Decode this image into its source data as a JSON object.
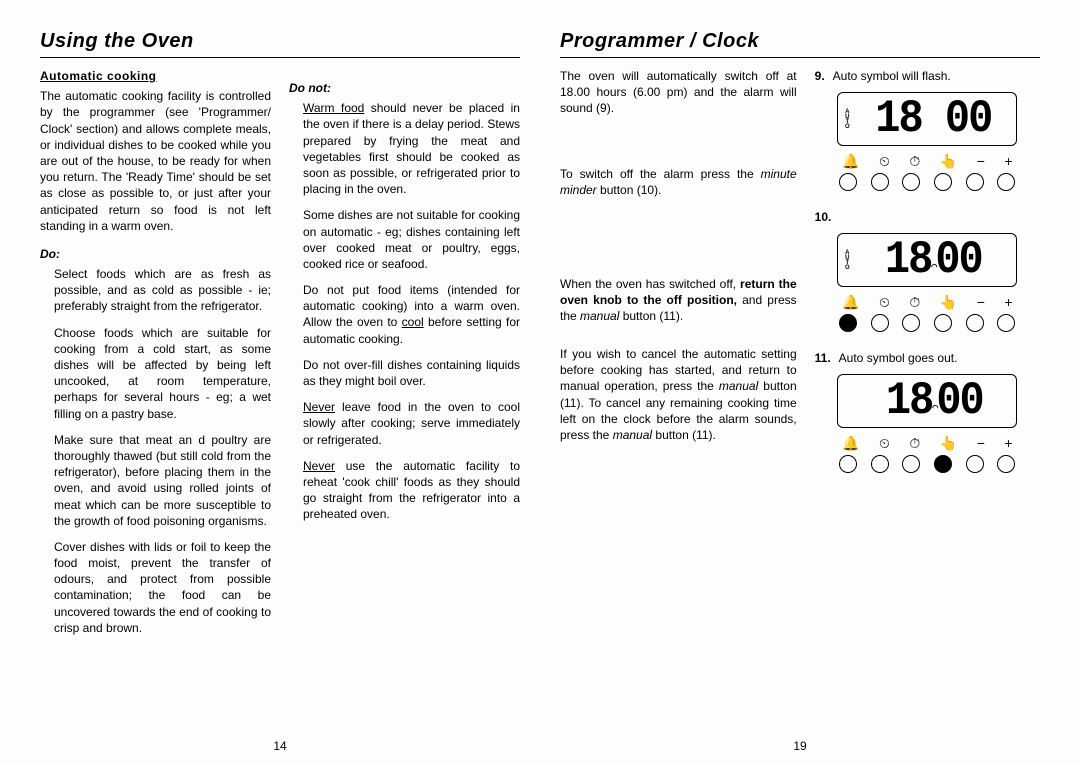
{
  "left_page": {
    "title": "Using the Oven",
    "section_heading": "Automatic cooking",
    "intro": "The automatic cooking facility is controlled by the programmer (see 'Programmer/ Clock' section) and allows complete meals, or individual dishes to be cooked while you are out of the house, to be ready for when you return. The 'Ready Time' should be set as close as possible to, or just after your anticipated return so food is not left standing in a warm oven.",
    "do_label": "Do:",
    "do_items": [
      "Select foods which are as fresh as possible, and as cold as possible - ie; preferably straight from the refrigerator.",
      "Choose foods which are suitable for cooking from a cold start, as some dishes will be affected by being left uncooked, at room temperature, perhaps for several hours - eg; a wet filling on a pastry base.",
      "Make sure that meat an d poultry are thoroughly thawed (but still cold from the refrigerator), before placing them in the oven, and avoid using rolled joints of meat which can be more susceptible to the growth of food poisoning organisms.",
      "Cover dishes with lids or foil to keep the food moist, prevent the transfer of odours, and protect from possible contamination; the food can be uncovered towards the end of cooking to crisp and brown."
    ],
    "donot_label": "Do not:",
    "donot_items": [
      {
        "pre": "Warm food",
        "text": " should never be placed in the oven if there is a delay period. Stews prepared by frying the meat and vegetables first should be cooked as soon as possible, or refrigerated prior to placing in the oven."
      },
      {
        "text": "Some dishes are not suitable for cooking on automatic - eg; dishes containing left over cooked meat or poultry, eggs, cooked rice or seafood."
      },
      {
        "text_before": "Do not put food items (intended for automatic cooking) into a warm oven.  Allow the oven to ",
        "underline": "cool",
        "text_after": " before setting for automatic cooking."
      },
      {
        "text": "Do not over-fill dishes containing liquids as they might boil over."
      },
      {
        "underline": "Never",
        "text_after": " leave food in the oven to cool slowly after cooking; serve immediately or refrigerated."
      },
      {
        "underline": "Never",
        "text_after": " use the automatic facility to reheat 'cook chill' foods as they should go straight from the refrigerator into a preheated oven."
      }
    ],
    "page_num": "14"
  },
  "right_page": {
    "title": "Programmer / Clock",
    "blocks": [
      "The oven will automatically switch off at 18.00 hours (6.00 pm) and the alarm will sound (9).",
      {
        "text_before": "To switch off the alarm press the ",
        "italic": "minute minder",
        "text_after": " button (10)."
      },
      {
        "text_before": "When the oven has switched off, ",
        "bold": "return the oven knob to the off position,",
        "text_mid": " and press the ",
        "italic": "manual",
        "text_after": " button (11)."
      },
      {
        "text_before": "If you wish to cancel the automatic setting before cooking has started, and return to manual operation, press the  ",
        "italic1": "manual",
        "text_mid": " button (11).  To cancel any remaining cooking time left on the clock before the alarm sounds, press the ",
        "italic2": "manual",
        "text_after": " button (11)."
      }
    ],
    "panels": [
      {
        "num": "9.",
        "caption": "Auto symbol will flash.",
        "show_auto": true,
        "show_pot": false,
        "time": "18 00",
        "pressed": -1
      },
      {
        "num": "10.",
        "caption": "",
        "show_auto": true,
        "show_pot": true,
        "time": "18 00",
        "pressed": 0
      },
      {
        "num": "11.",
        "caption": "Auto symbol goes out.",
        "show_auto": false,
        "show_pot": true,
        "time": "18 00",
        "pressed": 3
      }
    ],
    "icon_row": [
      "🔔",
      "⏲",
      "⏱",
      "👆",
      "−",
      "+"
    ],
    "page_num": "19"
  }
}
